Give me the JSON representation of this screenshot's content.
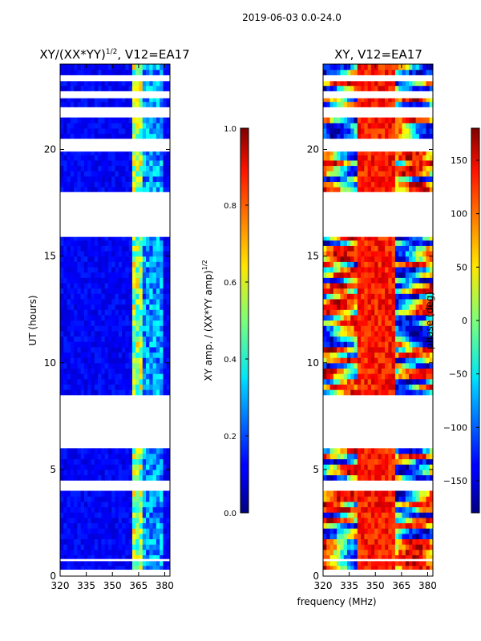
{
  "suptitle": "2019-06-03 0.0-24.0",
  "colors": {
    "stripe_a": "#ffffff",
    "frame": "#000000"
  },
  "chart_data": [
    {
      "type": "heatmap",
      "title": "XY/(XX*YY)",
      "title_sup": "1/2",
      "title_tail": ", V12=EA17",
      "ylabel": "UT (hours)",
      "xlabel": "",
      "xlim": [
        320,
        383
      ],
      "ylim": [
        0,
        24
      ],
      "xticks": [
        320,
        335,
        350,
        365,
        380
      ],
      "xtick_labels": [
        "320",
        "335",
        "350",
        "365",
        "380"
      ],
      "yticks": [
        0,
        5,
        10,
        15,
        20
      ],
      "ytick_labels": [
        "0",
        "5",
        "10",
        "15",
        "20"
      ],
      "colorbar": {
        "label": "XY amp. / (XX*YY amp)",
        "label_sup": "1/2",
        "range": [
          0.0,
          1.0
        ],
        "ticks": [
          0.0,
          0.2,
          0.4,
          0.6,
          0.8,
          1.0
        ],
        "tick_labels": [
          "0.0",
          "0.2",
          "0.4",
          "0.6",
          "0.8",
          "1.0"
        ]
      },
      "data_gaps_hours": [
        [
          0.0,
          0.3
        ],
        [
          0.7,
          0.8
        ],
        [
          4.0,
          4.4
        ],
        [
          6.0,
          8.4
        ],
        [
          15.9,
          18.0
        ],
        [
          19.9,
          20.5
        ],
        [
          21.5,
          21.9
        ],
        [
          22.4,
          22.7
        ],
        [
          23.2,
          23.4
        ]
      ],
      "bright_band_mhz": [
        361,
        368
      ]
    },
    {
      "type": "heatmap",
      "title": "XY, V12=EA17",
      "ylabel": "",
      "xlabel": "frequency (MHz)",
      "xlim": [
        320,
        383
      ],
      "ylim": [
        0,
        24
      ],
      "xticks": [
        320,
        335,
        350,
        365,
        380
      ],
      "xtick_labels": [
        "320",
        "335",
        "350",
        "365",
        "380"
      ],
      "yticks": [
        0,
        5,
        10,
        15,
        20
      ],
      "ytick_labels": [
        "0",
        "5",
        "10",
        "15",
        "20"
      ],
      "colorbar": {
        "label": "phase (deg)",
        "range": [
          -180,
          180
        ],
        "ticks": [
          -150,
          -100,
          -50,
          0,
          50,
          100,
          150
        ],
        "tick_labels": [
          "−150",
          "−100",
          "−50",
          "0",
          "50",
          "100",
          "150"
        ]
      },
      "data_gaps_hours": [
        [
          0.0,
          0.3
        ],
        [
          0.7,
          0.8
        ],
        [
          4.0,
          4.4
        ],
        [
          6.0,
          8.4
        ],
        [
          15.9,
          18.0
        ],
        [
          19.9,
          20.5
        ],
        [
          21.5,
          21.9
        ],
        [
          22.4,
          22.7
        ],
        [
          23.2,
          23.4
        ]
      ]
    }
  ]
}
